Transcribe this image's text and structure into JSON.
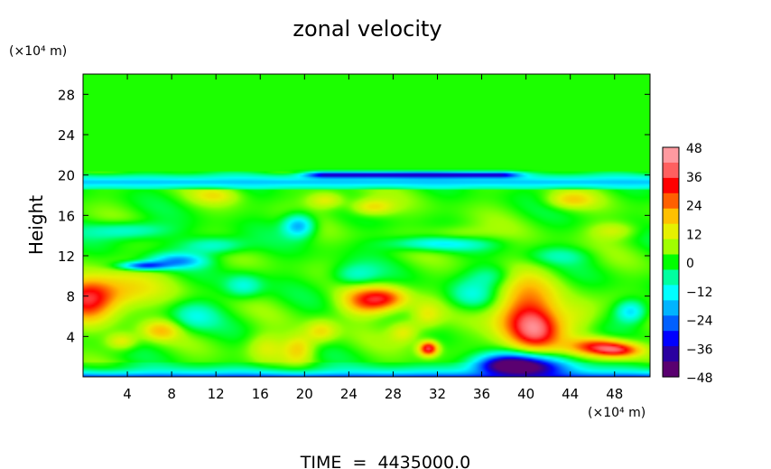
{
  "chart_data": {
    "type": "heatmap",
    "title": "zonal velocity",
    "xlabel": "",
    "ylabel": "Height",
    "x_unit": "(×10⁴ m)",
    "y_unit": "(×10⁴ m)",
    "xlim": [
      0,
      51.2
    ],
    "ylim": [
      0,
      30
    ],
    "x_ticks": [
      4,
      8,
      12,
      16,
      20,
      24,
      28,
      32,
      36,
      40,
      44,
      48
    ],
    "y_ticks": [
      4,
      8,
      12,
      16,
      20,
      24,
      28
    ],
    "grid": false,
    "colorbar": {
      "placement": "right",
      "range": [
        -48,
        48
      ],
      "tick_values": [
        48,
        36,
        24,
        12,
        0,
        -12,
        -24,
        -36,
        -48
      ],
      "tick_labels": [
        "48",
        "36",
        "24",
        "12",
        "0",
        "−12",
        "−24",
        "−36",
        "−48"
      ],
      "colors": [
        "#5a0070",
        "#2a00a0",
        "#0000ff",
        "#0060ff",
        "#00b4ff",
        "#00ffff",
        "#00ffa0",
        "#00ff00",
        "#a0ff00",
        "#e6f000",
        "#ffc000",
        "#ff6000",
        "#ff0000",
        "#ff6060",
        "#ff9aa0"
      ]
    },
    "background_value": 2,
    "features": [
      {
        "x": 2.0,
        "y": 8.3,
        "value": 24,
        "sx": 3.0,
        "sy": 1.3
      },
      {
        "x": 0.5,
        "y": 7.5,
        "value": 22,
        "sx": 1.5,
        "sy": 1.5
      },
      {
        "x": 7.0,
        "y": 4.6,
        "value": 18,
        "sx": 1.2,
        "sy": 0.7
      },
      {
        "x": 3.5,
        "y": 3.5,
        "value": 16,
        "sx": 1.0,
        "sy": 0.6
      },
      {
        "x": 19.5,
        "y": 2.8,
        "value": 18,
        "sx": 1.0,
        "sy": 1.0
      },
      {
        "x": 21.5,
        "y": 4.5,
        "value": 16,
        "sx": 1.0,
        "sy": 0.8
      },
      {
        "x": 25.5,
        "y": 7.5,
        "value": 26,
        "sx": 1.6,
        "sy": 1.0
      },
      {
        "x": 27.5,
        "y": 7.8,
        "value": 22,
        "sx": 1.4,
        "sy": 0.8
      },
      {
        "x": 31.0,
        "y": 6.0,
        "value": 14,
        "sx": 1.0,
        "sy": 1.0
      },
      {
        "x": 29.0,
        "y": 4.5,
        "value": 16,
        "sx": 1.0,
        "sy": 0.8
      },
      {
        "x": 31.2,
        "y": 2.8,
        "value": 40,
        "sx": 0.6,
        "sy": 0.5
      },
      {
        "x": 39.8,
        "y": 6.2,
        "value": 30,
        "sx": 2.0,
        "sy": 2.5
      },
      {
        "x": 41.0,
        "y": 4.5,
        "value": 24,
        "sx": 1.5,
        "sy": 1.5
      },
      {
        "x": 46.5,
        "y": 3.0,
        "value": 30,
        "sx": 1.8,
        "sy": 0.6
      },
      {
        "x": 48.5,
        "y": 2.6,
        "value": 28,
        "sx": 1.5,
        "sy": 0.5
      },
      {
        "x": 45.0,
        "y": 6.0,
        "value": 12,
        "sx": 1.5,
        "sy": 1.2
      },
      {
        "x": 16.5,
        "y": 3.0,
        "value": 12,
        "sx": 1.2,
        "sy": 1.0
      },
      {
        "x": 22.0,
        "y": 17.5,
        "value": 16,
        "sx": 1.2,
        "sy": 0.6
      },
      {
        "x": 26.0,
        "y": 16.8,
        "value": 18,
        "sx": 1.4,
        "sy": 0.6
      },
      {
        "x": 44.0,
        "y": 17.5,
        "value": 16,
        "sx": 1.5,
        "sy": 0.6
      },
      {
        "x": 12.0,
        "y": 18.0,
        "value": 12,
        "sx": 1.5,
        "sy": 0.6
      },
      {
        "x": 34.0,
        "y": 14.0,
        "value": 12,
        "sx": 2.0,
        "sy": 0.7
      },
      {
        "x": 48.0,
        "y": 14.5,
        "value": 12,
        "sx": 1.5,
        "sy": 0.6
      },
      {
        "x": 5.5,
        "y": 11.0,
        "value": -32,
        "sx": 1.5,
        "sy": 0.3
      },
      {
        "x": 8.5,
        "y": 11.5,
        "value": -20,
        "sx": 1.8,
        "sy": 0.5
      },
      {
        "x": 19.5,
        "y": 15.0,
        "value": -24,
        "sx": 1.0,
        "sy": 0.8
      },
      {
        "x": 12.0,
        "y": 13.0,
        "value": -14,
        "sx": 2.0,
        "sy": 0.6
      },
      {
        "x": 32.0,
        "y": 13.2,
        "value": -18,
        "sx": 3.0,
        "sy": 0.5
      },
      {
        "x": 4.0,
        "y": 14.5,
        "value": -14,
        "sx": 2.5,
        "sy": 0.6
      },
      {
        "x": 24.5,
        "y": 10.0,
        "value": -12,
        "sx": 1.5,
        "sy": 0.8
      },
      {
        "x": 14.5,
        "y": 9.0,
        "value": -12,
        "sx": 1.2,
        "sy": 0.8
      },
      {
        "x": 49.5,
        "y": 6.5,
        "value": -20,
        "sx": 1.0,
        "sy": 0.8
      },
      {
        "x": 40.0,
        "y": 0.8,
        "value": -44,
        "sx": 2.8,
        "sy": 0.9
      },
      {
        "x": 38.0,
        "y": 1.2,
        "value": -28,
        "sx": 2.0,
        "sy": 0.8
      },
      {
        "x": 35.0,
        "y": 8.0,
        "value": -10,
        "sx": 1.5,
        "sy": 1.0
      },
      {
        "x": 10.0,
        "y": 6.0,
        "value": -10,
        "sx": 1.5,
        "sy": 1.0
      },
      {
        "x": 37.0,
        "y": 10.0,
        "value": -8,
        "sx": 1.5,
        "sy": 0.8
      },
      {
        "x": 43.0,
        "y": 12.0,
        "value": -6,
        "sx": 2.0,
        "sy": 0.6
      }
    ],
    "jet_layer": {
      "y_top": 20.0,
      "y_bottom": 18.6,
      "value": -22
    },
    "jet_core": {
      "x_start": 22.0,
      "x_end": 37.5,
      "y": 20.0,
      "value": -40
    },
    "surface_layer": {
      "value": -40,
      "depth": 1.0
    }
  },
  "footer": {
    "time_label": "TIME  =  4435000.0"
  }
}
